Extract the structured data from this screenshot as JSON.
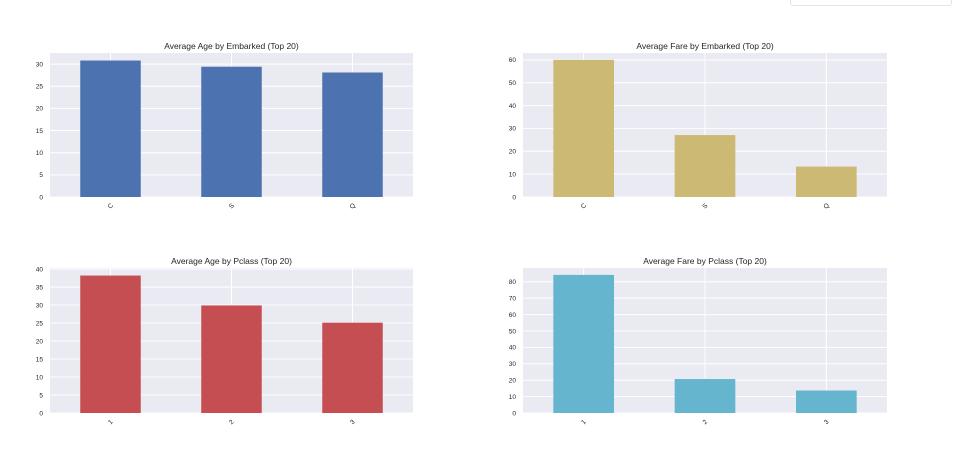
{
  "chart_data": [
    {
      "type": "bar",
      "title": "Average Age by Embarked (Top 20)",
      "categories": [
        "C",
        "S",
        "Q"
      ],
      "values": [
        30.8,
        29.4,
        28.1
      ],
      "yticks": [
        0,
        5,
        10,
        15,
        20,
        25,
        30
      ],
      "ylim": [
        0,
        32.5
      ],
      "color": "#4c72b0",
      "xlabel": "",
      "ylabel": "",
      "grid": true
    },
    {
      "type": "bar",
      "title": "Average Fare by Embarked (Top 20)",
      "categories": [
        "C",
        "S",
        "Q"
      ],
      "values": [
        60.0,
        27.1,
        13.3
      ],
      "yticks": [
        0,
        10,
        20,
        30,
        40,
        50,
        60
      ],
      "ylim": [
        0,
        63
      ],
      "color": "#ccb974",
      "xlabel": "",
      "ylabel": "",
      "grid": true
    },
    {
      "type": "bar",
      "title": "Average Age by Pclass (Top 20)",
      "categories": [
        "1",
        "2",
        "3"
      ],
      "values": [
        38.2,
        29.9,
        25.1
      ],
      "yticks": [
        0,
        5,
        10,
        15,
        20,
        25,
        30,
        35,
        40
      ],
      "ylim": [
        0,
        40.3
      ],
      "color": "#c44e52",
      "xlabel": "",
      "ylabel": "",
      "grid": true
    },
    {
      "type": "bar",
      "title": "Average Fare by Pclass (Top 20)",
      "categories": [
        "1",
        "2",
        "3"
      ],
      "values": [
        84.2,
        20.7,
        13.7
      ],
      "yticks": [
        0,
        10,
        20,
        30,
        40,
        50,
        60,
        70,
        80
      ],
      "ylim": [
        0,
        88.4
      ],
      "color": "#64b5cd",
      "xlabel": "",
      "ylabel": "",
      "grid": true
    }
  ]
}
